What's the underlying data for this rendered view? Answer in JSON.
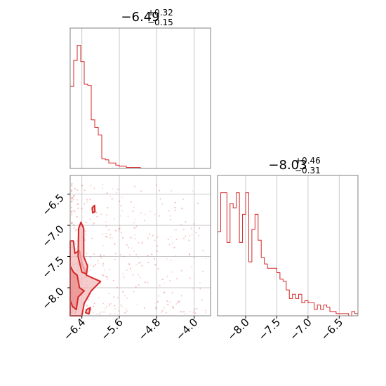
{
  "chart_data": [
    {
      "type": "bar",
      "panel": "marginal histogram (parameter 1)",
      "title_main": "−6.49",
      "title_sup": "+0.32",
      "title_sub": "−0.15",
      "xlim": [
        -6.65,
        -3.65
      ],
      "xgrid": [
        -6.4,
        -5.6,
        -4.8,
        -4.0
      ],
      "bins_start": -6.65,
      "bin_width": 0.075,
      "values": [
        76,
        100,
        114,
        99,
        78,
        77,
        45,
        38,
        31,
        9,
        8,
        5,
        5,
        3,
        2,
        2,
        1,
        1,
        1,
        1,
        0,
        0,
        0,
        0,
        0,
        0,
        0,
        0,
        0,
        0,
        0,
        0,
        0,
        0,
        0,
        0,
        0,
        0,
        0,
        0
      ],
      "ymax": 130,
      "color": "#d62728"
    },
    {
      "type": "bar",
      "panel": "marginal histogram (parameter 2)",
      "title_main": "−8.03",
      "title_sup": "+0.46",
      "title_sub": "−0.31",
      "xlim": [
        -8.45,
        -6.2
      ],
      "xticks": [
        -8.0,
        -7.5,
        -7.0,
        -6.5
      ],
      "xtick_labels": [
        "−8.0",
        "−7.5",
        "−7.0",
        "−6.5"
      ],
      "bins_start": -8.45,
      "bin_width": 0.05,
      "values": [
        39,
        57,
        57,
        34,
        52,
        50,
        57,
        34,
        47,
        57,
        25,
        40,
        47,
        35,
        27,
        24,
        22,
        22,
        22,
        20,
        17,
        16,
        12,
        8,
        10,
        8,
        10,
        6,
        7,
        6,
        6,
        3,
        5,
        3,
        5,
        4,
        2,
        2,
        1,
        1,
        1,
        1,
        0,
        2,
        1,
        0
      ],
      "ymax": 65,
      "color": "#d62728"
    },
    {
      "type": "scatter",
      "panel": "2D joint distribution (contours + samples)",
      "xlim": [
        -6.65,
        -3.65
      ],
      "ylim": [
        -8.45,
        -6.2
      ],
      "xticks": [
        -6.4,
        -5.6,
        -4.8,
        -4.0
      ],
      "xtick_labels": [
        "−6.4",
        "−5.6",
        "−4.8",
        "−4.0"
      ],
      "yticks": [
        -6.5,
        -7.0,
        -7.5,
        -8.0
      ],
      "ytick_labels": [
        "−6.5",
        "−7.0",
        "−7.5",
        "−8.0"
      ],
      "grid": true,
      "contour_color": "#d62728",
      "fill_color": "#f2b9b9",
      "contours": [
        [
          [
            -6.65,
            -8.45
          ],
          [
            -6.65,
            -7.25
          ],
          [
            -6.58,
            -7.25
          ],
          [
            -6.55,
            -7.45
          ],
          [
            -6.45,
            -7.4
          ],
          [
            -6.4,
            -7.6
          ],
          [
            -6.3,
            -7.8
          ],
          [
            -6.15,
            -7.85
          ],
          [
            -6.0,
            -7.9
          ],
          [
            -6.2,
            -8.05
          ],
          [
            -6.35,
            -8.25
          ],
          [
            -6.4,
            -8.45
          ]
        ],
        [
          [
            -6.65,
            -8.2
          ],
          [
            -6.65,
            -7.65
          ],
          [
            -6.58,
            -7.75
          ],
          [
            -6.5,
            -7.8
          ],
          [
            -6.45,
            -8.0
          ],
          [
            -6.35,
            -8.05
          ],
          [
            -6.48,
            -8.15
          ],
          [
            -6.52,
            -8.35
          ],
          [
            -6.6,
            -8.3
          ]
        ],
        [
          [
            -6.47,
            -7.05
          ],
          [
            -6.42,
            -6.95
          ],
          [
            -6.36,
            -7.05
          ],
          [
            -6.36,
            -7.5
          ],
          [
            -6.28,
            -7.65
          ],
          [
            -6.3,
            -7.78
          ],
          [
            -6.4,
            -7.75
          ],
          [
            -6.48,
            -7.5
          ]
        ],
        [
          [
            -6.18,
            -6.72
          ],
          [
            -6.13,
            -6.68
          ],
          [
            -6.12,
            -6.78
          ],
          [
            -6.17,
            -6.8
          ]
        ],
        [
          [
            -6.3,
            -8.35
          ],
          [
            -6.22,
            -8.32
          ],
          [
            -6.25,
            -8.42
          ],
          [
            -6.32,
            -8.4
          ]
        ]
      ]
    }
  ]
}
